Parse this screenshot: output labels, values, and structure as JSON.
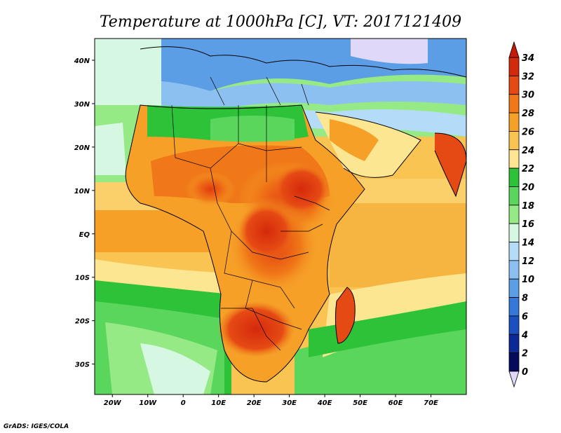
{
  "title": "Temperature at 1000hPa [C], VT: 2017121409",
  "credit": "GrADS: IGES/COLA",
  "map": {
    "lon_range": [
      -25,
      80
    ],
    "lat_range": [
      -37,
      45
    ],
    "x_ticks": [
      {
        "value": -20,
        "label": "20W"
      },
      {
        "value": -10,
        "label": "10W"
      },
      {
        "value": 0,
        "label": "0"
      },
      {
        "value": 10,
        "label": "10E"
      },
      {
        "value": 20,
        "label": "20E"
      },
      {
        "value": 30,
        "label": "30E"
      },
      {
        "value": 40,
        "label": "40E"
      },
      {
        "value": 50,
        "label": "50E"
      },
      {
        "value": 60,
        "label": "60E"
      },
      {
        "value": 70,
        "label": "70E"
      }
    ],
    "y_ticks": [
      {
        "value": 40,
        "label": "40N"
      },
      {
        "value": 30,
        "label": "30N"
      },
      {
        "value": 20,
        "label": "20N"
      },
      {
        "value": 10,
        "label": "10N"
      },
      {
        "value": 0,
        "label": "EQ"
      },
      {
        "value": -10,
        "label": "10S"
      },
      {
        "value": -20,
        "label": "20S"
      },
      {
        "value": -30,
        "label": "30S"
      }
    ]
  },
  "colorbar": {
    "labels": [
      "34",
      "32",
      "30",
      "28",
      "26",
      "24",
      "22",
      "20",
      "18",
      "16",
      "14",
      "12",
      "10",
      "8",
      "6",
      "4",
      "2",
      "0"
    ],
    "colors": [
      "#d42a0c",
      "#e64a14",
      "#f07818",
      "#f6a028",
      "#fac452",
      "#fde692",
      "#2ec238",
      "#5ad65c",
      "#96ea86",
      "#d6f8e2",
      "#b4dcf8",
      "#8cc0f0",
      "#5c9ee6",
      "#3478d8",
      "#1a50c0",
      "#0c2a96",
      "#060a5a"
    ],
    "top_triangle_color": "#c41a0a",
    "bottom_triangle_color": "#e0d8f8"
  }
}
